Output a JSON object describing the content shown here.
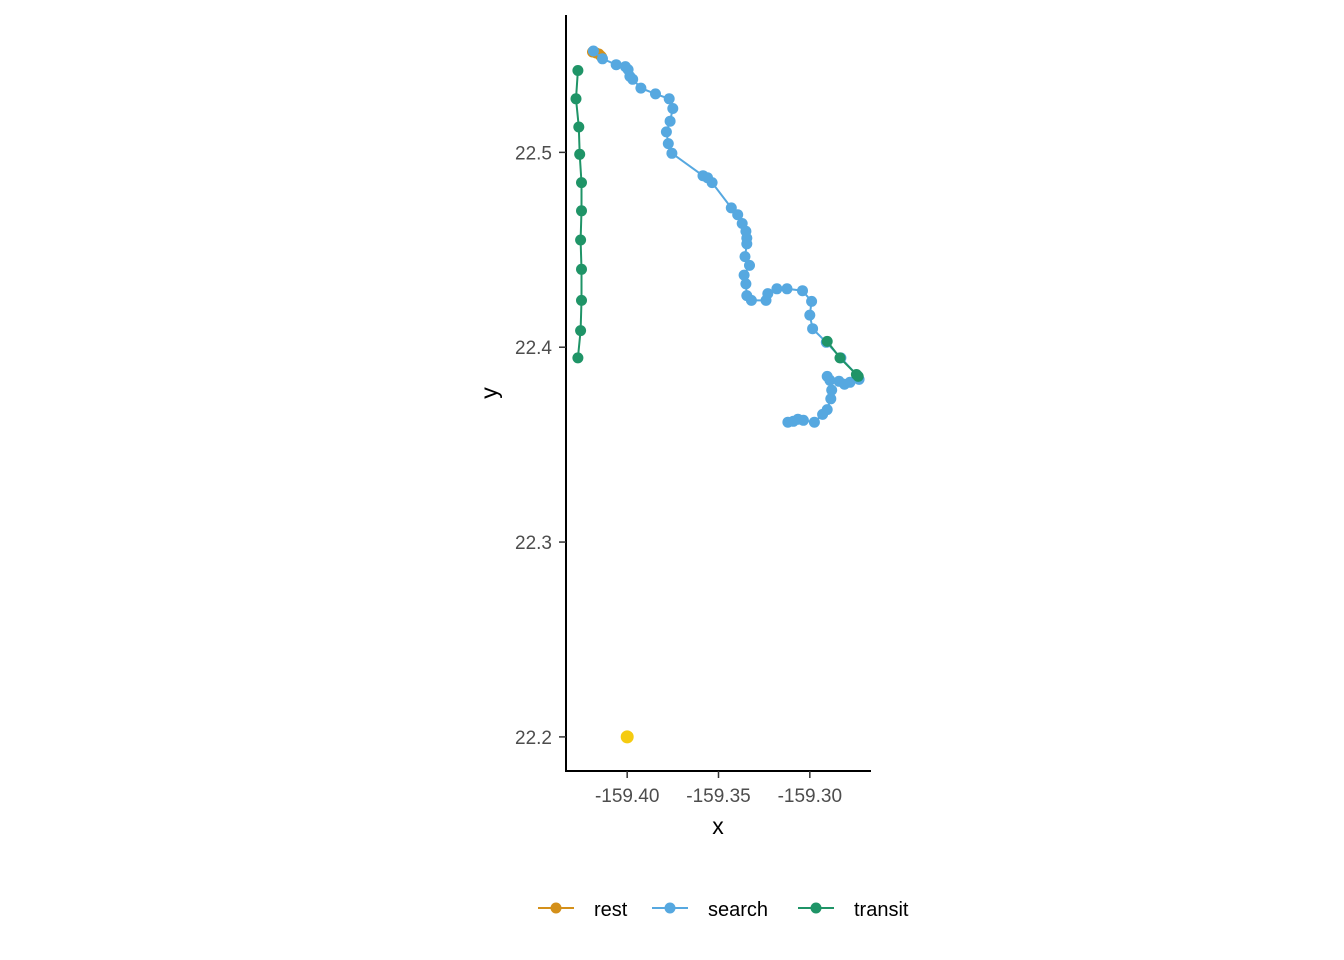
{
  "chart_data": {
    "type": "scatter",
    "xlabel": "x",
    "ylabel": "y",
    "xlim": [
      -159.4335,
      -159.2665
    ],
    "ylim": [
      22.1825,
      22.5705
    ],
    "x_ticks": [
      -159.4,
      -159.35,
      -159.3
    ],
    "x_tick_labels": [
      "-159.40",
      "-159.35",
      "-159.30"
    ],
    "y_ticks": [
      22.2,
      22.3,
      22.4,
      22.5
    ],
    "y_tick_labels": [
      "22.2",
      "22.3",
      "22.4",
      "22.5"
    ],
    "grid": false,
    "legend_position": "bottom",
    "series": [
      {
        "name": "rest",
        "color": "#D4901A",
        "points": [
          [
            -159.419,
            22.5515
          ],
          [
            -159.417,
            22.551
          ],
          [
            -159.4155,
            22.5505
          ],
          [
            -159.4145,
            22.5495
          ],
          [
            -159.414,
            22.549
          ]
        ]
      },
      {
        "name": "search",
        "color": "#56A8E0",
        "points": [
          [
            -159.4185,
            22.552
          ],
          [
            -159.4135,
            22.548
          ],
          [
            -159.406,
            22.545
          ],
          [
            -159.401,
            22.544
          ],
          [
            -159.3995,
            22.5425
          ],
          [
            -159.3985,
            22.539
          ],
          [
            -159.397,
            22.5375
          ],
          [
            -159.3925,
            22.533
          ],
          [
            -159.3845,
            22.53
          ],
          [
            -159.377,
            22.5275
          ],
          [
            -159.375,
            22.5225
          ],
          [
            -159.3765,
            22.516
          ],
          [
            -159.3785,
            22.5105
          ],
          [
            -159.3775,
            22.5045
          ],
          [
            -159.3755,
            22.4995
          ],
          [
            -159.3585,
            22.488
          ],
          [
            -159.356,
            22.487
          ],
          [
            -159.3535,
            22.4845
          ],
          [
            -159.343,
            22.4715
          ],
          [
            -159.3395,
            22.468
          ],
          [
            -159.337,
            22.4635
          ],
          [
            -159.335,
            22.4595
          ],
          [
            -159.3345,
            22.456
          ],
          [
            -159.3345,
            22.453
          ],
          [
            -159.3355,
            22.4465
          ],
          [
            -159.333,
            22.442
          ],
          [
            -159.336,
            22.437
          ],
          [
            -159.335,
            22.4325
          ],
          [
            -159.3345,
            22.4265
          ],
          [
            -159.332,
            22.424
          ],
          [
            -159.324,
            22.424
          ],
          [
            -159.323,
            22.4275
          ],
          [
            -159.318,
            22.43
          ],
          [
            -159.3125,
            22.43
          ],
          [
            -159.304,
            22.429
          ],
          [
            -159.299,
            22.4235
          ],
          [
            -159.3,
            22.4165
          ],
          [
            -159.2985,
            22.4095
          ],
          [
            -159.291,
            22.4025
          ],
          [
            -159.283,
            22.3945
          ],
          [
            -159.274,
            22.3855
          ],
          [
            -159.273,
            22.3835
          ],
          [
            -159.278,
            22.382
          ],
          [
            -159.281,
            22.381
          ],
          [
            -159.284,
            22.3825
          ],
          [
            -159.289,
            22.383
          ],
          [
            -159.2905,
            22.385
          ],
          [
            -159.288,
            22.378
          ],
          [
            -159.2885,
            22.3735
          ],
          [
            -159.2905,
            22.368
          ],
          [
            -159.293,
            22.3655
          ],
          [
            -159.2975,
            22.3615
          ],
          [
            -159.3035,
            22.3625
          ],
          [
            -159.3065,
            22.363
          ],
          [
            -159.309,
            22.362
          ],
          [
            -159.312,
            22.3615
          ]
        ]
      },
      {
        "name": "transit",
        "color": "#1F9467",
        "points": [
          [
            -159.427,
            22.542
          ],
          [
            -159.428,
            22.5275
          ],
          [
            -159.4265,
            22.513
          ],
          [
            -159.426,
            22.499
          ],
          [
            -159.425,
            22.4845
          ],
          [
            -159.425,
            22.47
          ],
          [
            -159.4255,
            22.455
          ],
          [
            -159.425,
            22.44
          ],
          [
            -159.425,
            22.424
          ],
          [
            -159.4255,
            22.4085
          ],
          [
            -159.427,
            22.3945
          ]
        ],
        "extra_segment": [
          [
            -159.2905,
            22.403
          ],
          [
            -159.2835,
            22.3945
          ],
          [
            -159.2745,
            22.386
          ],
          [
            -159.2735,
            22.385
          ]
        ]
      },
      {
        "name": "",
        "color": "#F5CB11",
        "show_in_legend": false,
        "points": [
          [
            -159.4,
            22.2
          ]
        ]
      }
    ]
  }
}
